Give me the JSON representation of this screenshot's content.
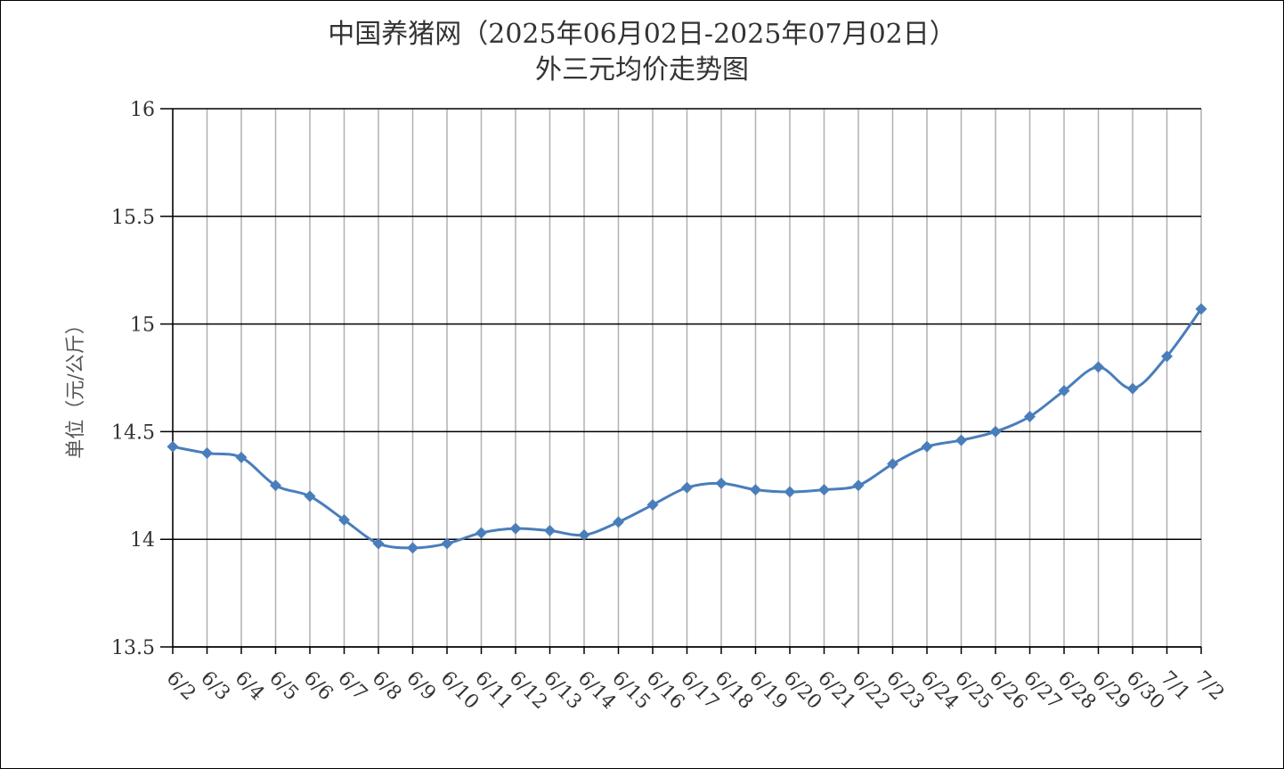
{
  "chart_data": {
    "type": "line",
    "title": "中国养猪网（2025年06月02日-2025年07月02日）",
    "subtitle": "外三元均价走势图",
    "xlabel": "",
    "ylabel": "单位（元/公斤）",
    "ylim": [
      13.5,
      16
    ],
    "yticks": [
      "13.5",
      "14",
      "14.5",
      "15",
      "15.5",
      "16"
    ],
    "grid": "on",
    "colors": {
      "series": "#4a7ebb",
      "hgrid": "#000000",
      "vgrid": "#b0b0b0",
      "axis": "#000000"
    },
    "categories": [
      "6/2",
      "6/3",
      "6/4",
      "6/5",
      "6/6",
      "6/7",
      "6/8",
      "6/9",
      "6/10",
      "6/11",
      "6/12",
      "6/13",
      "6/14",
      "6/15",
      "6/16",
      "6/17",
      "6/18",
      "6/19",
      "6/20",
      "6/21",
      "6/22",
      "6/23",
      "6/24",
      "6/25",
      "6/26",
      "6/27",
      "6/28",
      "6/29",
      "6/30",
      "7/1",
      "7/2"
    ],
    "values": [
      14.43,
      14.4,
      14.38,
      14.25,
      14.2,
      14.09,
      13.98,
      13.96,
      13.98,
      14.03,
      14.05,
      14.04,
      14.02,
      14.08,
      14.16,
      14.24,
      14.26,
      14.23,
      14.22,
      14.23,
      14.25,
      14.35,
      14.43,
      14.46,
      14.5,
      14.57,
      14.69,
      14.8,
      14.7,
      14.85,
      15.07
    ]
  }
}
